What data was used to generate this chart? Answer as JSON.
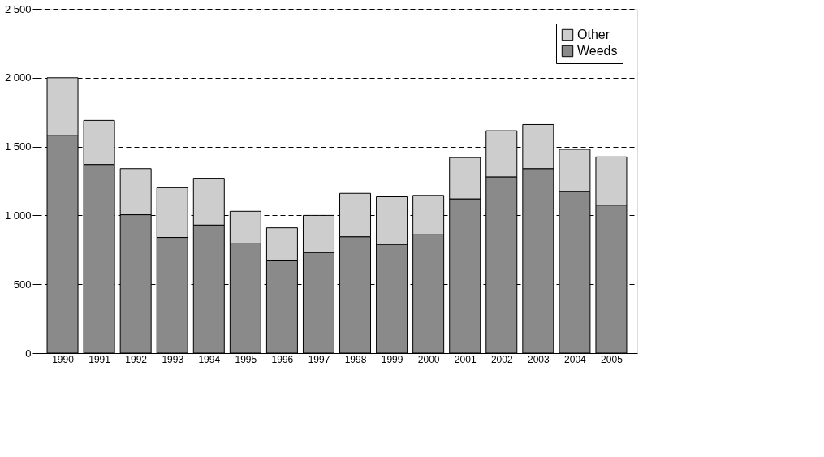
{
  "chart_data": {
    "type": "bar",
    "stacked": true,
    "categories": [
      "1990",
      "1991",
      "1992",
      "1993",
      "1994",
      "1995",
      "1996",
      "1997",
      "1998",
      "1999",
      "2000",
      "2001",
      "2002",
      "2003",
      "2004",
      "2005"
    ],
    "series": [
      {
        "name": "Weeds",
        "color": "#8a8a8a",
        "values": [
          1580,
          1370,
          1005,
          840,
          930,
          795,
          675,
          730,
          845,
          790,
          860,
          1120,
          1280,
          1340,
          1175,
          1075
        ]
      },
      {
        "name": "Other",
        "color": "#cdcdcd",
        "values": [
          420,
          320,
          335,
          365,
          340,
          235,
          235,
          270,
          315,
          345,
          285,
          300,
          335,
          320,
          305,
          350
        ]
      }
    ],
    "ylim": [
      0,
      2500
    ],
    "yticks": [
      0,
      500,
      {
        "value": 1000,
        "label": "1 000"
      },
      {
        "value": 1500,
        "label": "1 500"
      },
      {
        "value": 2000,
        "label": "2 000"
      },
      {
        "value": 2500,
        "label": "2 500"
      }
    ],
    "grid": "y",
    "legend": "top right"
  }
}
